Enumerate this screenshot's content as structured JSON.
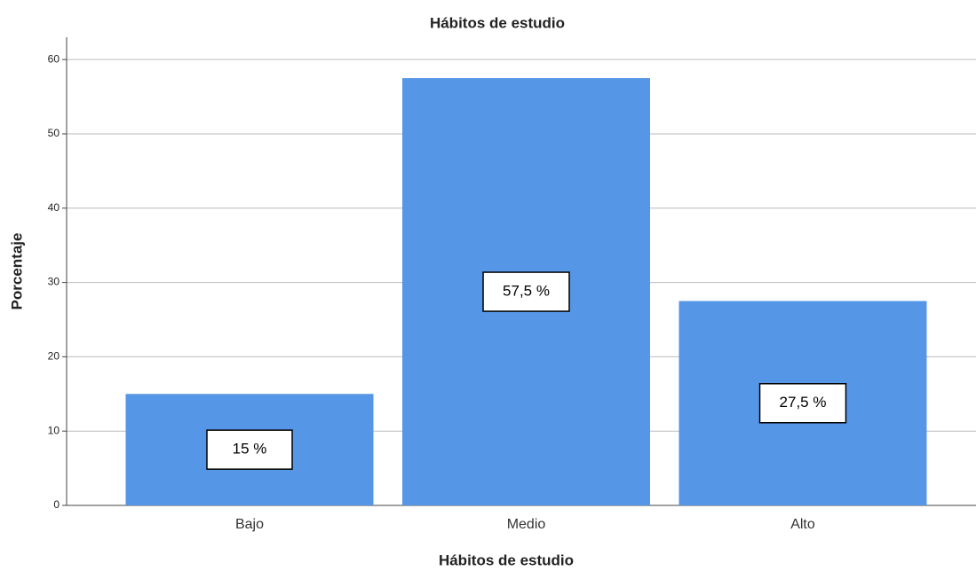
{
  "chart_data": {
    "type": "bar",
    "title": "Hábitos de estudio",
    "x_label": "Hábitos de estudio",
    "y_label": "Porcentaje",
    "categories": [
      "Bajo",
      "Medio",
      "Alto"
    ],
    "values": [
      15,
      57.5,
      27.5
    ],
    "value_labels": [
      "15 %",
      "57,5 %",
      "27,5 %"
    ],
    "color": "#5596e6",
    "ylim": [
      0,
      63
    ],
    "yticks": [
      0,
      10,
      20,
      30,
      40,
      50,
      60
    ],
    "grid": true
  }
}
